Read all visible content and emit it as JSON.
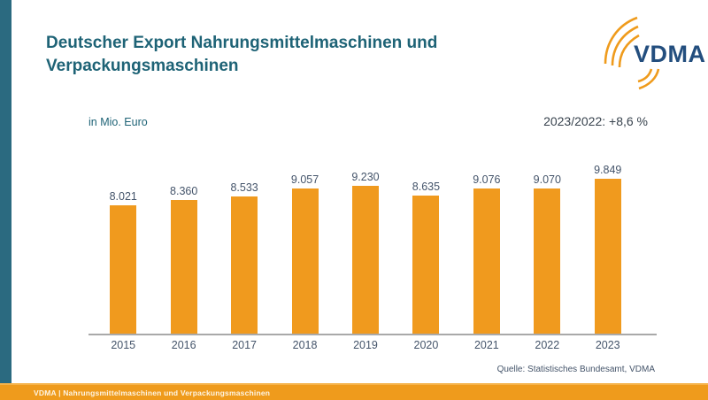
{
  "page": {
    "title": "Deutscher Export Nahrungsmittelmaschinen und Verpackungsmaschinen",
    "unit_label": "in Mio. Euro",
    "change_label": "2023/2022: +8,6 %",
    "source": "Quelle: Statistisches Bundesamt, VDMA",
    "footer": "VDMA | Nahrungsmittelmaschinen und Verpackungsmaschinen",
    "logo_text": "VDMA"
  },
  "chart_data": {
    "type": "bar",
    "title": "Deutscher Export Nahrungsmittelmaschinen und Verpackungsmaschinen",
    "subtitle": "in Mio. Euro",
    "annotation": "2023/2022: +8,6 %",
    "categories": [
      "2015",
      "2016",
      "2017",
      "2018",
      "2019",
      "2020",
      "2021",
      "2022",
      "2023"
    ],
    "values": [
      8021,
      8360,
      8533,
      9057,
      9230,
      8635,
      9076,
      9070,
      9849
    ],
    "value_labels": [
      "8.021",
      "8.360",
      "8.533",
      "9.057",
      "9.230",
      "8.635",
      "9.076",
      "9.070",
      "9.849"
    ],
    "xlabel": "",
    "ylabel": "Mio. Euro",
    "ylim": [
      0,
      10600
    ],
    "grid": false,
    "legend": "none",
    "bar_color": "#F09A1E",
    "label_color": "#44546A",
    "axis_color": "#A9A9A9"
  },
  "colors": {
    "accent_teal": "#2B6A80",
    "title_teal": "#1E6376",
    "bar_orange": "#F09A1E",
    "footer_orange": "#EF9B1C",
    "logo_blue": "#234E7E"
  }
}
